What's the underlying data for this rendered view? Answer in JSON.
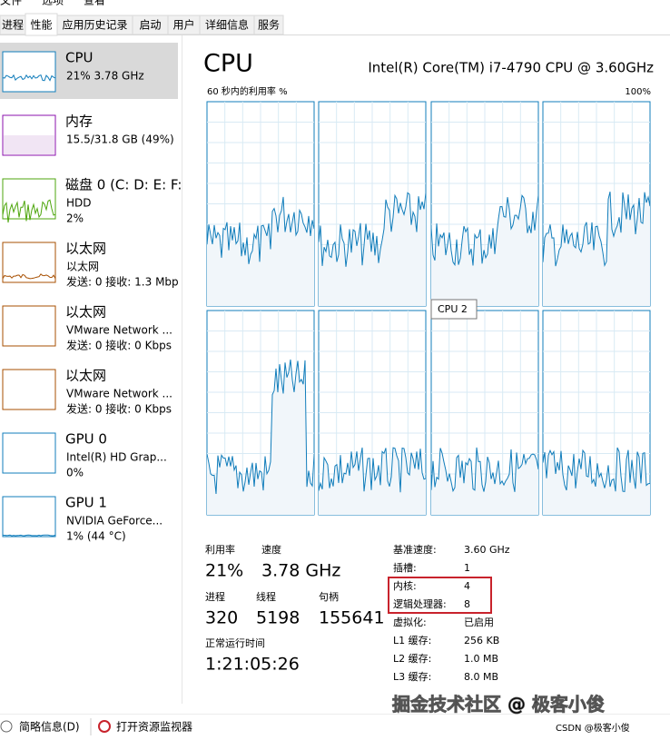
{
  "menu": [
    "文件",
    "选项",
    "查看"
  ],
  "tabs": [
    "进程",
    "性能",
    "应用历史记录",
    "启动",
    "用户",
    "详细信息",
    "服务"
  ],
  "sidebar": [
    {
      "name": "CPU",
      "lines": [
        "21% 3.78 GHz"
      ]
    },
    {
      "name": "内存",
      "lines": [
        "15.5/31.8 GB (49%)"
      ]
    },
    {
      "name": "磁盘 0 (C: D: E: F:",
      "lines": [
        "HDD",
        "2%"
      ]
    },
    {
      "name": "以太网",
      "lines": [
        "以太网",
        "发送: 0 接收: 1.3 Mbp"
      ]
    },
    {
      "name": "以太网",
      "lines": [
        "VMware Network ...",
        "发送: 0 接收: 0 Kbps"
      ]
    },
    {
      "name": "以太网",
      "lines": [
        "VMware Network ...",
        "发送: 0 接收: 0 Kbps"
      ]
    },
    {
      "name": "GPU 0",
      "lines": [
        "Intel(R) HD Grap...",
        "0%"
      ]
    },
    {
      "name": "GPU 1",
      "lines": [
        "NVIDIA GeForce...",
        "1% (44 °C)"
      ]
    }
  ],
  "main": {
    "title": "CPU",
    "model": "Intel(R) Core(TM) i7-4790 CPU @ 3.60GHz",
    "graph_label": "60 秒内的利用率 %",
    "graph_max": "100%",
    "tooltip": "CPU 2"
  },
  "stats": [
    {
      "label": "利用率",
      "value": "21%"
    },
    {
      "label": "速度",
      "value": "3.78 GHz"
    },
    {
      "label": "进程",
      "value": "320"
    },
    {
      "label": "线程",
      "value": "5198"
    },
    {
      "label": "句柄",
      "value": "155641"
    },
    {
      "label": "正常运行时间",
      "value": "1:21:05:26"
    }
  ],
  "details": [
    {
      "label": "基准速度:",
      "value": "3.60 GHz"
    },
    {
      "label": "插槽:",
      "value": "1"
    },
    {
      "label": "内核:",
      "value": "4"
    },
    {
      "label": "逻辑处理器:",
      "value": "8"
    },
    {
      "label": "虚拟化:",
      "value": "已启用"
    },
    {
      "label": "L1 缓存:",
      "value": "256 KB"
    },
    {
      "label": "L2 缓存:",
      "value": "1.0 MB"
    },
    {
      "label": "L3 缓存:",
      "value": "8.0 MB"
    }
  ],
  "footer": {
    "less": "简略信息(D)",
    "monitor": "打开资源监视器"
  },
  "watermark": {
    "main": "掘金技术社区 @ 极客小俊",
    "sub": "CSDN @极客小俊"
  }
}
